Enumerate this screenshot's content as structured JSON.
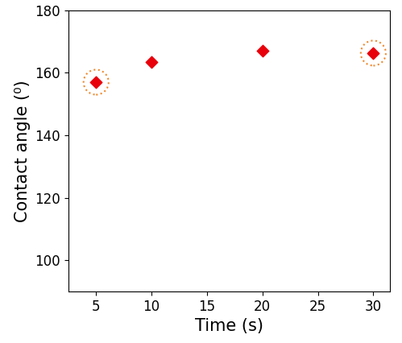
{
  "chart_data": {
    "type": "scatter",
    "x_label": "Time (s)",
    "y_label": "Contact angle (⁰)",
    "x": [
      5,
      10,
      20,
      30
    ],
    "values": [
      157,
      163.5,
      167,
      166.3
    ],
    "color": "#e8000b",
    "marker": "diamond",
    "xlim": [
      2.5,
      31.5
    ],
    "xticks": [
      5,
      10,
      15,
      20,
      25,
      30
    ],
    "ylim": [
      90,
      180
    ],
    "yticks": [
      100,
      120,
      140,
      160,
      180
    ],
    "grid": false
  }
}
